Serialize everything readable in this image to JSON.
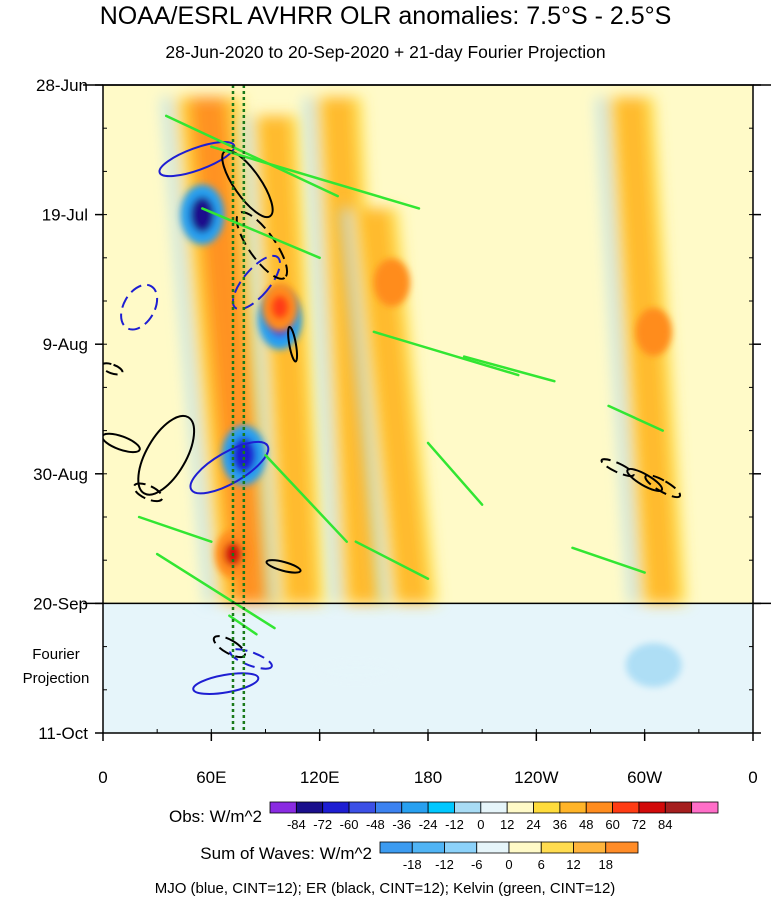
{
  "header": {
    "title": "NOAA/ESRL AVHRR OLR anomalies: 7.5°S - 2.5°S",
    "subtitle": "28-Jun-2020 to 20-Sep-2020 + 21-day Fourier Projection"
  },
  "chart_data": {
    "type": "heatmap",
    "title": "NOAA/ESRL AVHRR OLR anomalies: 7.5°S - 2.5°S",
    "subtitle": "28-Jun-2020 to 20-Sep-2020 + 21-day Fourier Projection",
    "y_axis": {
      "ticks": [
        "28-Jun",
        "19-Jul",
        "9-Aug",
        "30-Aug",
        "20-Sep",
        "11-Oct"
      ],
      "tick_days": [
        0,
        21,
        42,
        63,
        84,
        105
      ],
      "observed_end": "20-Sep",
      "projection_label_lines": [
        "Fourier",
        "Projection"
      ],
      "direction": "time increases downward"
    },
    "x_axis": {
      "ticks": [
        "0",
        "60E",
        "120E",
        "180",
        "120W",
        "60W",
        "0"
      ],
      "tick_lon": [
        0,
        60,
        120,
        180,
        240,
        300,
        360
      ]
    },
    "obs_colorbar": {
      "label": "Obs: W/m^2",
      "levels": [
        "-84",
        "-72",
        "-60",
        "-48",
        "-36",
        "-24",
        "-12",
        "0",
        "12",
        "24",
        "36",
        "48",
        "60",
        "72",
        "84"
      ],
      "colors": [
        "#8a2be2",
        "#1a0f8c",
        "#1e1ed2",
        "#3c50e6",
        "#3c82f0",
        "#28a0f0",
        "#00c8ff",
        "#a8dcf5",
        "#e6f5fa",
        "#fffac8",
        "#ffdc3c",
        "#ffb428",
        "#ff8c1e",
        "#ff3c14",
        "#d20a0a",
        "#a51e1e",
        "#ff6ec8"
      ]
    },
    "waves_colorbar": {
      "label": "Sum of Waves: W/m^2",
      "levels": [
        "-18",
        "-12",
        "-6",
        "0",
        "6",
        "12",
        "18"
      ],
      "colors": [
        "#3c9bf0",
        "#50b4f5",
        "#8cd2fa",
        "#e6f5fa",
        "#fffac8",
        "#ffdc50",
        "#ffb43c",
        "#ff8c28"
      ]
    },
    "wave_filters": [
      {
        "name": "MJO",
        "color": "#1e1ed2",
        "cint": 12
      },
      {
        "name": "ER",
        "color": "#000000",
        "cint": 12
      },
      {
        "name": "Kelvin",
        "color": "#32e632",
        "cint": 12
      }
    ],
    "legend_text": "MJO (blue, CINT=12); ER (black, CINT=12); Kelvin (green, CINT=12)",
    "reference_lines": {
      "lon": [
        72,
        78
      ],
      "color": "#1a7a1a",
      "style": "dotted"
    },
    "convective_bands": [
      {
        "lon_start": 58,
        "day_start": 2,
        "lon_end": 82,
        "day_end": 84,
        "strength": "strong"
      },
      {
        "lon_start": 95,
        "day_start": 5,
        "lon_end": 110,
        "day_end": 84,
        "strength": "moderate"
      },
      {
        "lon_start": 130,
        "day_start": 2,
        "lon_end": 145,
        "day_end": 84,
        "strength": "moderate"
      },
      {
        "lon_start": 150,
        "day_start": 20,
        "lon_end": 172,
        "day_end": 84,
        "strength": "moderate"
      },
      {
        "lon_start": 292,
        "day_start": 2,
        "lon_end": 310,
        "day_end": 84,
        "strength": "moderate"
      }
    ],
    "enhanced_convection": [
      {
        "lon": 55,
        "day": 21,
        "value": -72
      },
      {
        "lon": 78,
        "day": 60,
        "value": -60
      },
      {
        "lon": 98,
        "day": 38,
        "value": -48
      }
    ],
    "suppressed_convection": [
      {
        "lon": 98,
        "day": 36,
        "value": 48
      },
      {
        "lon": 72,
        "day": 76,
        "value": 60
      },
      {
        "lon": 160,
        "day": 32,
        "value": 36
      },
      {
        "lon": 305,
        "day": 40,
        "value": 36
      }
    ]
  }
}
